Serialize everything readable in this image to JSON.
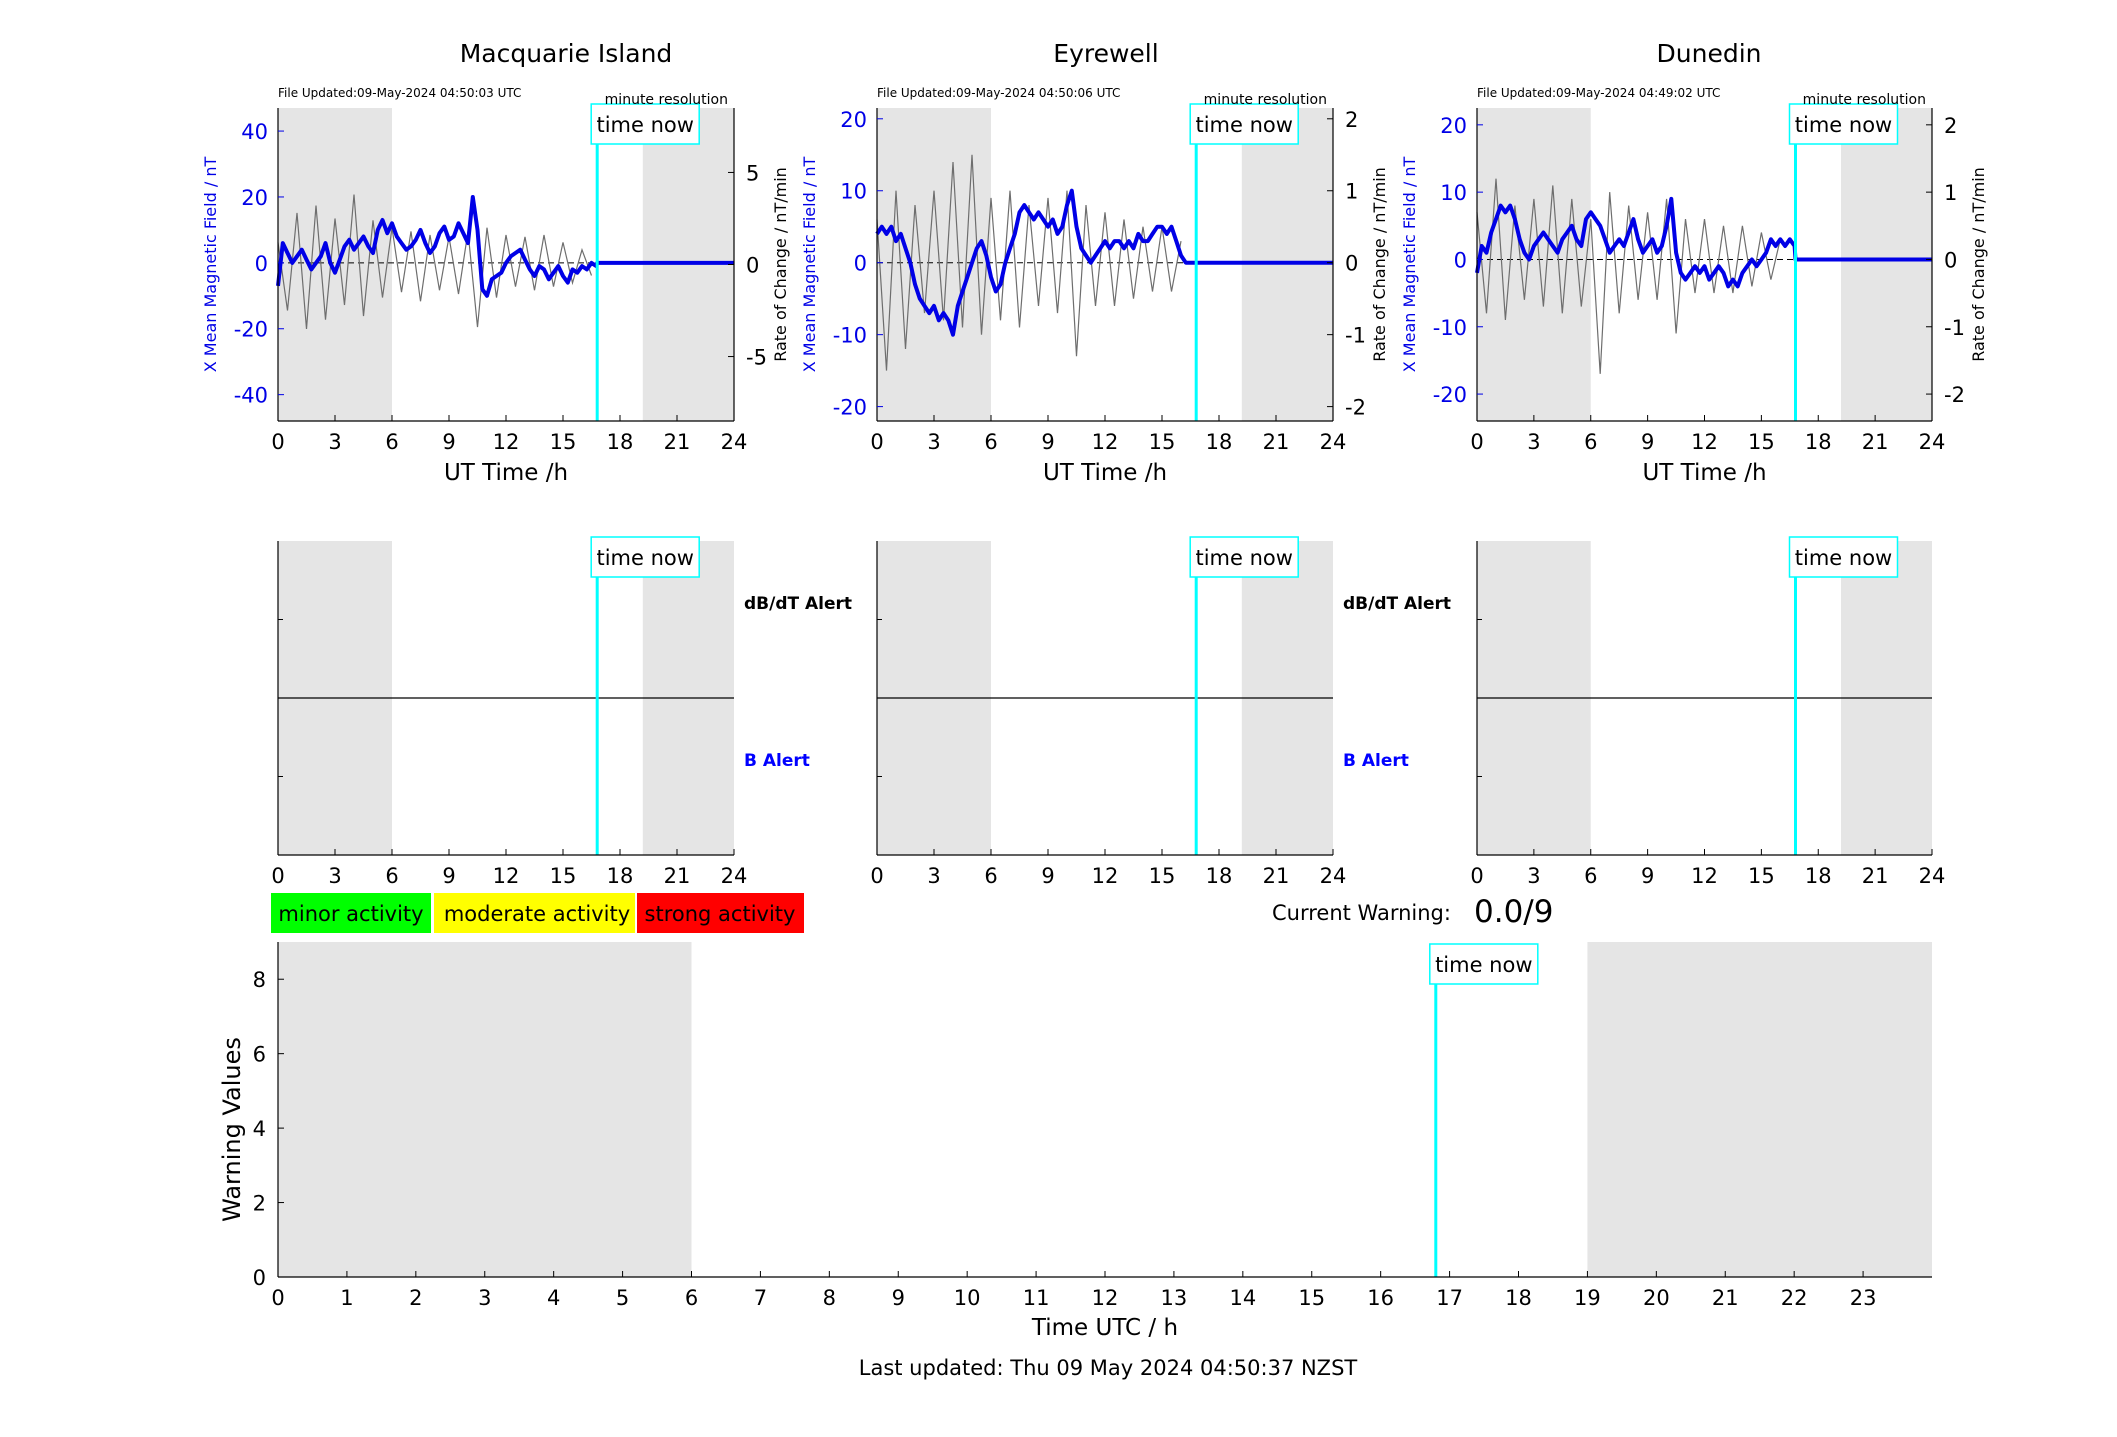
{
  "page": {
    "current_warning_label": "Current Warning:",
    "current_warning_value": "0.0/9",
    "last_updated": "Last updated: Thu 09 May 2024 04:50:37 NZST"
  },
  "legend": {
    "minor": {
      "label": "minor activity",
      "color": "#00ff00"
    },
    "moderate": {
      "label": "moderate activity",
      "color": "#ffff00"
    },
    "strong": {
      "label": "strong activity",
      "color": "#ff0000"
    }
  },
  "colors": {
    "field_line": "#0000e6",
    "rate_line": "#6e6e6e",
    "time_now": "#00ffff",
    "night_shading": "#e5e5e5",
    "b_alert_label": "#0000ff"
  },
  "chart_data": [
    {
      "type": "line",
      "title": "Macquarie Island",
      "file_updated": "File Updated:09-May-2024 04:50:03 UTC",
      "resolution": "minute resolution",
      "time_now_label": "time now",
      "time_now_h": 16.8,
      "night_bands_h": [
        [
          0,
          6
        ],
        [
          19.2,
          24
        ]
      ],
      "xlabel": "UT Time /h",
      "ylabel": "X Mean Magnetic Field / nT",
      "y2label": "Rate of Change / nT/min",
      "xlim": [
        0,
        24
      ],
      "ylim": [
        -48,
        47
      ],
      "y2lim": [
        -8.5,
        8.5
      ],
      "yticks": [
        -40,
        -20,
        0,
        20,
        40
      ],
      "y2ticks": [
        -5,
        0,
        5
      ],
      "xticks": [
        0,
        3,
        6,
        9,
        12,
        15,
        18,
        21,
        24
      ],
      "series": [
        {
          "axis": "left",
          "x": [
            0,
            0.25,
            0.5,
            0.75,
            1,
            1.25,
            1.5,
            1.75,
            2,
            2.25,
            2.5,
            2.75,
            3,
            3.25,
            3.5,
            3.75,
            4,
            4.25,
            4.5,
            4.75,
            5,
            5.25,
            5.5,
            5.75,
            6,
            6.25,
            6.5,
            6.75,
            7,
            7.25,
            7.5,
            7.75,
            8,
            8.25,
            8.5,
            8.75,
            9,
            9.25,
            9.5,
            9.75,
            10,
            10.25,
            10.5,
            10.75,
            11,
            11.25,
            11.5,
            11.75,
            12,
            12.25,
            12.5,
            12.75,
            13,
            13.25,
            13.5,
            13.75,
            14,
            14.25,
            14.5,
            14.75,
            15,
            15.25,
            15.5,
            15.75,
            16,
            16.25,
            16.5,
            16.75,
            16.8,
            24
          ],
          "values": [
            -7,
            6,
            3,
            0,
            2,
            4,
            1,
            -2,
            0,
            2,
            6,
            0,
            -3,
            1,
            5,
            7,
            4,
            6,
            8,
            5,
            3,
            10,
            13,
            9,
            12,
            8,
            6,
            4,
            5,
            7,
            10,
            6,
            3,
            5,
            9,
            11,
            7,
            8,
            12,
            9,
            6,
            20,
            10,
            -8,
            -10,
            -5,
            -4,
            -3,
            0,
            2,
            3,
            4,
            1,
            -2,
            -4,
            -1,
            -2,
            -5,
            -3,
            -1,
            -4,
            -6,
            -2,
            -3,
            -1,
            -2,
            0,
            -1,
            0,
            0
          ]
        },
        {
          "axis": "right",
          "x": [
            0,
            0.5,
            1,
            1.5,
            2,
            2.5,
            3,
            3.5,
            4,
            4.5,
            5,
            5.5,
            6,
            6.5,
            7,
            7.5,
            8,
            8.5,
            9,
            9.5,
            10,
            10.5,
            11,
            11.5,
            12,
            12.5,
            13,
            13.5,
            14,
            14.5,
            15,
            15.5,
            16,
            16.5
          ],
          "values": [
            1.2,
            -2.5,
            2.8,
            -3.5,
            3.2,
            -3.0,
            2.5,
            -2.2,
            3.8,
            -2.8,
            2.4,
            -1.8,
            2.0,
            -1.5,
            1.8,
            -2.0,
            1.6,
            -1.4,
            1.5,
            -1.6,
            1.8,
            -3.4,
            2.0,
            -1.8,
            1.6,
            -1.2,
            1.5,
            -1.4,
            1.6,
            -1.2,
            1.2,
            -1.0,
            0.8,
            -0.6
          ]
        }
      ]
    },
    {
      "type": "line",
      "title": "Eyrewell",
      "file_updated": "File Updated:09-May-2024 04:50:06 UTC",
      "resolution": "minute resolution",
      "time_now_label": "time now",
      "time_now_h": 16.8,
      "night_bands_h": [
        [
          0,
          6
        ],
        [
          19.2,
          24
        ]
      ],
      "xlabel": "UT Time /h",
      "ylabel": "X Mean Magnetic Field / nT",
      "y2label": "Rate of Change / nT/min",
      "xlim": [
        0,
        24
      ],
      "ylim": [
        -22,
        21.5
      ],
      "y2lim": [
        -2.2,
        2.15
      ],
      "yticks": [
        -20,
        -10,
        0,
        10,
        20
      ],
      "y2ticks": [
        -2,
        -1,
        0,
        1,
        2
      ],
      "xticks": [
        0,
        3,
        6,
        9,
        12,
        15,
        18,
        21,
        24
      ],
      "series": [
        {
          "axis": "left",
          "x": [
            0,
            0.25,
            0.5,
            0.75,
            1,
            1.25,
            1.5,
            1.75,
            2,
            2.25,
            2.5,
            2.75,
            3,
            3.25,
            3.5,
            3.75,
            4,
            4.25,
            4.5,
            4.75,
            5,
            5.25,
            5.5,
            5.75,
            6,
            6.25,
            6.5,
            6.75,
            7,
            7.25,
            7.5,
            7.75,
            8,
            8.25,
            8.5,
            8.75,
            9,
            9.25,
            9.5,
            9.75,
            10,
            10.25,
            10.5,
            10.75,
            11,
            11.25,
            11.5,
            11.75,
            12,
            12.25,
            12.5,
            12.75,
            13,
            13.25,
            13.5,
            13.75,
            14,
            14.25,
            14.5,
            14.75,
            15,
            15.25,
            15.5,
            15.75,
            16,
            16.25,
            16.8,
            24
          ],
          "values": [
            4,
            5,
            4,
            5,
            3,
            4,
            2,
            0,
            -3,
            -5,
            -6,
            -7,
            -6,
            -8,
            -7,
            -8,
            -10,
            -6,
            -4,
            -2,
            0,
            2,
            3,
            1,
            -2,
            -4,
            -3,
            0,
            2,
            4,
            7,
            8,
            7,
            6,
            7,
            6,
            5,
            6,
            4,
            5,
            8,
            10,
            5,
            2,
            1,
            0,
            1,
            2,
            3,
            2,
            3,
            3,
            2,
            3,
            2,
            4,
            3,
            3,
            4,
            5,
            5,
            4,
            5,
            3,
            1,
            0,
            0,
            0
          ]
        },
        {
          "axis": "right",
          "x": [
            0,
            0.5,
            1,
            1.5,
            2,
            2.5,
            3,
            3.5,
            4,
            4.5,
            5,
            5.5,
            6,
            6.5,
            7,
            7.5,
            8,
            8.5,
            9,
            9.5,
            10,
            10.5,
            11,
            11.5,
            12,
            12.5,
            13,
            13.5,
            14,
            14.5,
            15,
            15.5,
            16
          ],
          "values": [
            0.6,
            -1.5,
            1.0,
            -1.2,
            0.8,
            -0.7,
            1.0,
            -0.8,
            1.4,
            -0.9,
            1.5,
            -1.0,
            0.9,
            -0.8,
            1.0,
            -0.9,
            0.8,
            -0.6,
            0.9,
            -0.7,
            1.0,
            -1.3,
            0.8,
            -0.6,
            0.7,
            -0.6,
            0.6,
            -0.5,
            0.5,
            -0.4,
            0.5,
            -0.4,
            0.3
          ]
        }
      ]
    },
    {
      "type": "line",
      "title": "Dunedin",
      "file_updated": "File Updated:09-May-2024 04:49:02 UTC",
      "resolution": "minute resolution",
      "time_now_label": "time now",
      "time_now_h": 16.8,
      "night_bands_h": [
        [
          0,
          6
        ],
        [
          19.2,
          24
        ]
      ],
      "xlabel": "UT Time /h",
      "ylabel": "X Mean Magnetic Field / nT",
      "y2label": "Rate of Change / nT/min",
      "xlim": [
        0,
        24
      ],
      "ylim": [
        -24,
        22.5
      ],
      "y2lim": [
        -2.4,
        2.25
      ],
      "yticks": [
        -20,
        -10,
        0,
        10,
        20
      ],
      "y2ticks": [
        -2,
        -1,
        0,
        1,
        2
      ],
      "xticks": [
        0,
        3,
        6,
        9,
        12,
        15,
        18,
        21,
        24
      ],
      "series": [
        {
          "axis": "left",
          "x": [
            0,
            0.25,
            0.5,
            0.75,
            1,
            1.25,
            1.5,
            1.75,
            2,
            2.25,
            2.5,
            2.75,
            3,
            3.25,
            3.5,
            3.75,
            4,
            4.25,
            4.5,
            4.75,
            5,
            5.25,
            5.5,
            5.75,
            6,
            6.25,
            6.5,
            6.75,
            7,
            7.25,
            7.5,
            7.75,
            8,
            8.25,
            8.5,
            8.75,
            9,
            9.25,
            9.5,
            9.75,
            10,
            10.25,
            10.5,
            10.75,
            11,
            11.25,
            11.5,
            11.75,
            12,
            12.25,
            12.5,
            12.75,
            13,
            13.25,
            13.5,
            13.75,
            14,
            14.25,
            14.5,
            14.75,
            15,
            15.25,
            15.5,
            15.75,
            16,
            16.25,
            16.5,
            16.75,
            16.8,
            24
          ],
          "values": [
            -2,
            2,
            1,
            4,
            6,
            8,
            7,
            8,
            6,
            3,
            1,
            0,
            2,
            3,
            4,
            3,
            2,
            1,
            3,
            4,
            5,
            3,
            2,
            6,
            7,
            6,
            5,
            3,
            1,
            2,
            3,
            2,
            4,
            6,
            3,
            1,
            2,
            3,
            1,
            2,
            5,
            9,
            1,
            -2,
            -3,
            -2,
            -1,
            -2,
            -1,
            -3,
            -2,
            -1,
            -2,
            -4,
            -3,
            -4,
            -2,
            -1,
            0,
            -1,
            0,
            1,
            3,
            2,
            3,
            2,
            3,
            2,
            0,
            0
          ]
        },
        {
          "axis": "right",
          "x": [
            0,
            0.5,
            1,
            1.5,
            2,
            2.5,
            3,
            3.5,
            4,
            4.5,
            5,
            5.5,
            6,
            6.5,
            7,
            7.5,
            8,
            8.5,
            9,
            9.5,
            10,
            10.5,
            11,
            11.5,
            12,
            12.5,
            13,
            13.5,
            14,
            14.5,
            15,
            15.5,
            16
          ],
          "values": [
            0.7,
            -0.8,
            1.2,
            -0.9,
            0.8,
            -0.6,
            0.9,
            -0.7,
            1.1,
            -0.8,
            0.9,
            -0.7,
            0.6,
            -1.7,
            1.0,
            -0.8,
            0.8,
            -0.6,
            0.7,
            -0.6,
            0.9,
            -1.1,
            0.6,
            -0.5,
            0.6,
            -0.5,
            0.5,
            -0.5,
            0.5,
            -0.4,
            0.4,
            -0.3,
            0.3
          ]
        }
      ]
    },
    {
      "type": "line",
      "title": "",
      "time_now_label": "time now",
      "time_now_h": 16.8,
      "night_bands_h": [
        [
          0,
          6
        ],
        [
          19.2,
          24
        ]
      ],
      "upper_label": "dB/dT Alert",
      "lower_label": "B Alert",
      "xlim": [
        0,
        24
      ],
      "xticks": [
        0,
        3,
        6,
        9,
        12,
        15,
        18,
        21,
        24
      ],
      "series": []
    },
    {
      "type": "line",
      "title": "",
      "time_now_label": "time now",
      "time_now_h": 16.8,
      "night_bands_h": [
        [
          0,
          6
        ],
        [
          19.2,
          24
        ]
      ],
      "upper_label": "dB/dT Alert",
      "lower_label": "B Alert",
      "xlim": [
        0,
        24
      ],
      "xticks": [
        0,
        3,
        6,
        9,
        12,
        15,
        18,
        21,
        24
      ],
      "series": []
    },
    {
      "type": "line",
      "title": "",
      "time_now_label": "time now",
      "time_now_h": 16.8,
      "night_bands_h": [
        [
          0,
          6
        ],
        [
          19.2,
          24
        ]
      ],
      "xlim": [
        0,
        24
      ],
      "xticks": [
        0,
        3,
        6,
        9,
        12,
        15,
        18,
        21,
        24
      ],
      "series": []
    },
    {
      "type": "bar",
      "title": "",
      "time_now_label": "time now",
      "time_now_h": 16.8,
      "night_bands_h": [
        [
          0,
          6
        ],
        [
          19,
          24
        ]
      ],
      "xlabel": "Time UTC / h",
      "ylabel": "Warning Values",
      "xlim": [
        0,
        24
      ],
      "ylim": [
        0,
        9
      ],
      "xticks": [
        0,
        1,
        2,
        3,
        4,
        5,
        6,
        7,
        8,
        9,
        10,
        11,
        12,
        13,
        14,
        15,
        16,
        17,
        18,
        19,
        20,
        21,
        22,
        23
      ],
      "yticks": [
        0,
        2,
        4,
        6,
        8
      ],
      "series": []
    }
  ]
}
